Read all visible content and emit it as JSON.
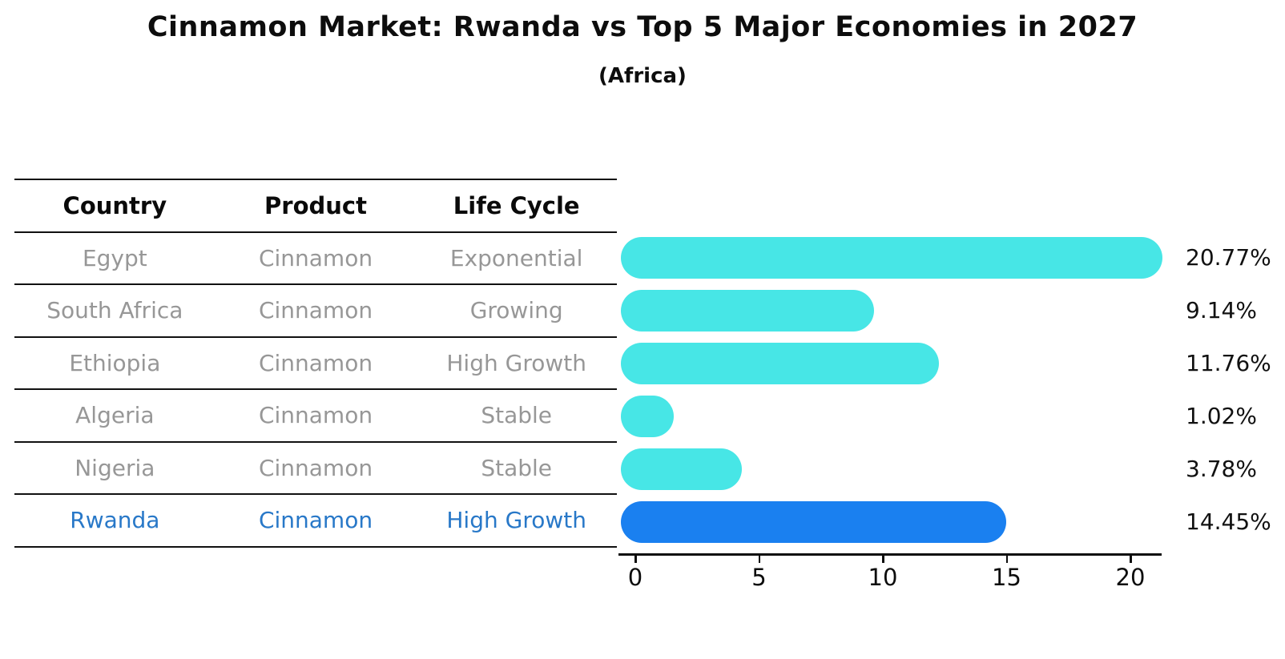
{
  "page": {
    "title": "Cinnamon Market: Rwanda vs Top 5 Major Economies in 2027",
    "subtitle": "(Africa)"
  },
  "table": {
    "headers": [
      "Country",
      "Product",
      "Life Cycle"
    ],
    "rows": [
      {
        "country": "Egypt",
        "product": "Cinnamon",
        "life_cycle": "Exponential"
      },
      {
        "country": "South Africa",
        "product": "Cinnamon",
        "life_cycle": "Growing"
      },
      {
        "country": "Ethiopia",
        "product": "Cinnamon",
        "life_cycle": "High Growth"
      },
      {
        "country": "Algeria",
        "product": "Cinnamon",
        "life_cycle": "Stable"
      },
      {
        "country": "Nigeria",
        "product": "Cinnamon",
        "life_cycle": "Stable"
      },
      {
        "country": "Rwanda",
        "product": "Cinnamon",
        "life_cycle": "High Growth"
      }
    ],
    "highlighted_row": "Rwanda"
  },
  "chart_data": {
    "type": "bar",
    "orientation": "horizontal",
    "title": "Cinnamon Market: Rwanda vs Top 5 Major Economies in 2027",
    "subtitle": "(Africa)",
    "categories": [
      "Egypt",
      "South Africa",
      "Ethiopia",
      "Algeria",
      "Nigeria",
      "Rwanda"
    ],
    "values": [
      20.77,
      9.14,
      11.76,
      1.02,
      3.78,
      14.45
    ],
    "value_labels": [
      "20.77%",
      "9.14%",
      "11.76%",
      "1.02%",
      "3.78%",
      "14.45%"
    ],
    "xticks": [
      "0",
      "5",
      "10",
      "15",
      "20"
    ],
    "xtick_values": [
      0,
      5,
      10,
      15,
      20
    ],
    "xlim": [
      0,
      21.3
    ],
    "grid": false,
    "legend": false,
    "highlight_index": 5,
    "colors": {
      "bar_default": "#47e6e6",
      "bar_highlight": "#1a80f0",
      "highlight_text": "#2878c8",
      "table_text": "#979797",
      "header_text": "#0a0a0a",
      "axis_text": "#0d0d0d"
    }
  }
}
